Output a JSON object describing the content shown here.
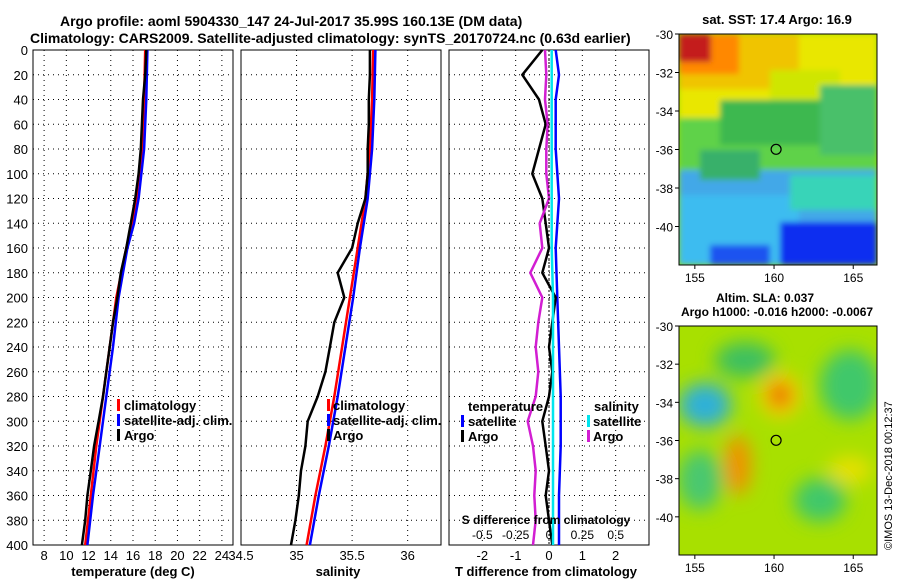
{
  "title_line1": "Argo profile: aoml 5904330_147 24-Jul-2017 35.99S 160.13E (DM data)",
  "title_line2": "Climatology: CARS2009. Satellite-adjusted climatology: synTS_20170724.nc (0.63d earlier)",
  "footer_credit": "©IMOS 13-Dec-2018 00:12:37",
  "colors": {
    "climatology": "#ff0000",
    "satellite": "#0000ff",
    "argo": "#000000",
    "satellite_salinity": "#00e5ee",
    "argo_salinity": "#d21ed2"
  },
  "chart_data": [
    {
      "type": "line",
      "name": "temperature-profile",
      "xlabel": "temperature (deg C)",
      "ylabel": "",
      "xlim": [
        7,
        25
      ],
      "ylim": [
        400,
        0
      ],
      "xticks": [
        8,
        10,
        12,
        14,
        16,
        18,
        20,
        22,
        24
      ],
      "yticks": [
        0,
        20,
        40,
        60,
        80,
        100,
        120,
        140,
        160,
        180,
        200,
        220,
        240,
        260,
        280,
        300,
        320,
        340,
        360,
        380,
        400
      ],
      "grid": true,
      "legend": [
        "climatology",
        "satellite-adj. clim.",
        "Argo"
      ],
      "legend_position": "bottom-right",
      "series": [
        {
          "name": "climatology",
          "color": "#ff0000",
          "depth": [
            0,
            40,
            80,
            120,
            140,
            160,
            200,
            240,
            280,
            320,
            360,
            400
          ],
          "values": [
            17.1,
            17.0,
            16.8,
            16.3,
            15.9,
            15.4,
            14.5,
            13.9,
            13.3,
            12.7,
            12.2,
            11.7
          ]
        },
        {
          "name": "satellite-adj. clim.",
          "color": "#0000ff",
          "depth": [
            0,
            40,
            80,
            120,
            140,
            160,
            200,
            240,
            280,
            320,
            360,
            400
          ],
          "values": [
            17.3,
            17.2,
            17.0,
            16.5,
            16.1,
            15.5,
            14.7,
            14.2,
            13.6,
            13.0,
            12.4,
            11.9
          ]
        },
        {
          "name": "Argo",
          "color": "#000000",
          "depth": [
            0,
            20,
            40,
            60,
            80,
            100,
            120,
            140,
            160,
            180,
            200,
            220,
            240,
            260,
            280,
            300,
            320,
            340,
            360,
            380,
            400
          ],
          "values": [
            17.2,
            17.1,
            16.9,
            16.8,
            16.7,
            16.5,
            16.2,
            15.8,
            15.4,
            14.9,
            14.6,
            14.2,
            13.9,
            13.6,
            13.3,
            12.9,
            12.5,
            12.2,
            11.9,
            11.7,
            11.4
          ]
        }
      ]
    },
    {
      "type": "line",
      "name": "salinity-profile",
      "xlabel": "salinity",
      "xlim": [
        34.5,
        36.3
      ],
      "ylim": [
        400,
        0
      ],
      "xticks": [
        34.5,
        35,
        35.5,
        36
      ],
      "grid": true,
      "legend": [
        "climatology",
        "satellite-adj. clim.",
        "Argo"
      ],
      "legend_position": "bottom-right",
      "series": [
        {
          "name": "climatology",
          "color": "#ff0000",
          "depth": [
            0,
            40,
            80,
            120,
            160,
            200,
            240,
            280,
            320,
            360,
            400
          ],
          "values": [
            35.69,
            35.68,
            35.66,
            35.62,
            35.55,
            35.48,
            35.41,
            35.34,
            35.26,
            35.17,
            35.09
          ]
        },
        {
          "name": "satellite-adj. clim.",
          "color": "#0000ff",
          "depth": [
            0,
            40,
            80,
            120,
            160,
            200,
            240,
            280,
            320,
            360,
            400
          ],
          "values": [
            35.71,
            35.7,
            35.68,
            35.64,
            35.57,
            35.51,
            35.44,
            35.37,
            35.29,
            35.2,
            35.12
          ]
        },
        {
          "name": "Argo",
          "color": "#000000",
          "depth": [
            0,
            20,
            40,
            60,
            80,
            100,
            120,
            140,
            160,
            180,
            200,
            220,
            240,
            260,
            280,
            300,
            320,
            340,
            360,
            380,
            400
          ],
          "values": [
            35.66,
            35.66,
            35.65,
            35.65,
            35.64,
            35.64,
            35.62,
            35.55,
            35.5,
            35.37,
            35.43,
            35.34,
            35.3,
            35.26,
            35.19,
            35.1,
            35.08,
            35.04,
            35.02,
            34.99,
            34.95
          ]
        }
      ]
    },
    {
      "type": "line",
      "name": "difference-profile",
      "xlabel": "T difference from climatology",
      "x2label": "S difference from climatology",
      "xlim": [
        -3,
        3
      ],
      "x2lim": [
        -0.75,
        0.75
      ],
      "ylim": [
        400,
        0
      ],
      "xticks": [
        -2,
        -1,
        0,
        1,
        2
      ],
      "x2ticks": [
        -0.5,
        -0.25,
        0,
        0.25,
        0.5
      ],
      "grid": true,
      "legend_temperature_title": "temperature",
      "legend_salinity_title": "salinity",
      "legend_temperature": [
        "satellite",
        "Argo"
      ],
      "legend_salinity": [
        "satellite",
        "Argo"
      ],
      "series": [
        {
          "name": "T satellite",
          "color": "#0000ff",
          "axis": "T",
          "depth": [
            0,
            20,
            40,
            80,
            120,
            160,
            200,
            240,
            280,
            320,
            360,
            400
          ],
          "values": [
            0.2,
            0.3,
            0.2,
            0.2,
            0.3,
            0.2,
            0.25,
            0.3,
            0.35,
            0.35,
            0.3,
            0.3
          ]
        },
        {
          "name": "T Argo",
          "color": "#000000",
          "axis": "T",
          "depth": [
            0,
            20,
            40,
            60,
            80,
            100,
            120,
            140,
            160,
            180,
            200,
            220,
            240,
            260,
            280,
            300,
            320,
            340,
            360,
            380,
            400
          ],
          "values": [
            -0.2,
            -0.8,
            -0.3,
            -0.1,
            -0.3,
            -0.5,
            -0.2,
            -0.1,
            0.0,
            -0.2,
            0.2,
            0.1,
            0.0,
            0.1,
            0.0,
            -0.2,
            -0.1,
            0.0,
            -0.1,
            0.0,
            0.1
          ]
        },
        {
          "name": "S satellite",
          "color": "#00e5ee",
          "axis": "S",
          "depth": [
            0,
            40,
            80,
            120,
            160,
            200,
            240,
            280,
            320,
            360,
            400
          ],
          "values": [
            0.02,
            0.02,
            0.02,
            0.02,
            0.02,
            0.03,
            0.03,
            0.03,
            0.03,
            0.03,
            0.03
          ]
        },
        {
          "name": "S Argo",
          "color": "#d21ed2",
          "axis": "S",
          "depth": [
            0,
            20,
            40,
            60,
            80,
            100,
            120,
            140,
            160,
            180,
            200,
            220,
            240,
            260,
            280,
            300,
            320,
            340,
            360,
            380,
            400
          ],
          "values": [
            -0.03,
            -0.02,
            -0.03,
            -0.01,
            -0.02,
            -0.02,
            0.0,
            -0.07,
            -0.05,
            -0.14,
            -0.05,
            -0.08,
            -0.1,
            -0.08,
            -0.1,
            -0.16,
            -0.12,
            -0.1,
            -0.11,
            -0.1,
            -0.12
          ]
        }
      ]
    },
    {
      "type": "heatmap",
      "name": "sst-map",
      "title": "sat. SST: 17.4 Argo: 16.9",
      "xlim": [
        154,
        166.5
      ],
      "ylim": [
        -42,
        -30
      ],
      "xticks": [
        155,
        160,
        165
      ],
      "yticks": [
        -30,
        -32,
        -34,
        -36,
        -38,
        -40
      ],
      "profile_marker": {
        "lon": 160.13,
        "lat": -35.99
      }
    },
    {
      "type": "heatmap",
      "name": "sla-map",
      "title": "Altim. SLA: 0.037",
      "subtitle": "Argo h1000: -0.016 h2000: -0.0067",
      "xlim": [
        154,
        166.5
      ],
      "ylim": [
        -42,
        -30
      ],
      "xticks": [
        155,
        160,
        165
      ],
      "yticks": [
        -30,
        -32,
        -34,
        -36,
        -38,
        -40
      ],
      "profile_marker": {
        "lon": 160.13,
        "lat": -35.99
      }
    }
  ]
}
